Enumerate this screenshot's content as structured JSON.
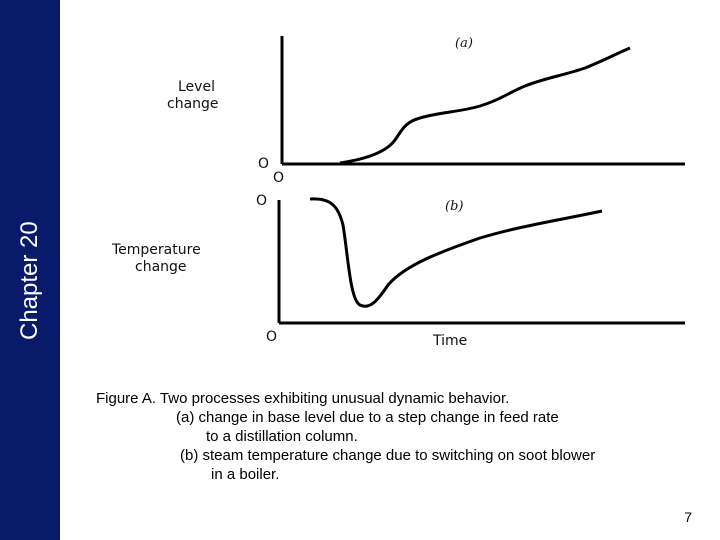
{
  "sidebar": {
    "chapter_label": "Chapter 20",
    "color": "#0a1a6b"
  },
  "figure": {
    "panel_a": {
      "tag": "(a)",
      "ylabel_line1": "Level",
      "ylabel_line2": "change",
      "origin_y": "O",
      "origin_x": "O"
    },
    "panel_b": {
      "tag": "(b)",
      "ylabel_line1": "Temperature",
      "ylabel_line2": "change",
      "origin_top": "O",
      "origin_y": "O",
      "xlabel": "Time"
    }
  },
  "caption": {
    "line1": "Figure A.  Two processes exhibiting unusual dynamic behavior.",
    "line2": "(a) change in base level due to a step change in feed rate",
    "line3": "to a distillation column.",
    "line4": "(b) steam temperature change due to switching on soot blower",
    "line5": "in a boiler."
  },
  "page_number": "7"
}
